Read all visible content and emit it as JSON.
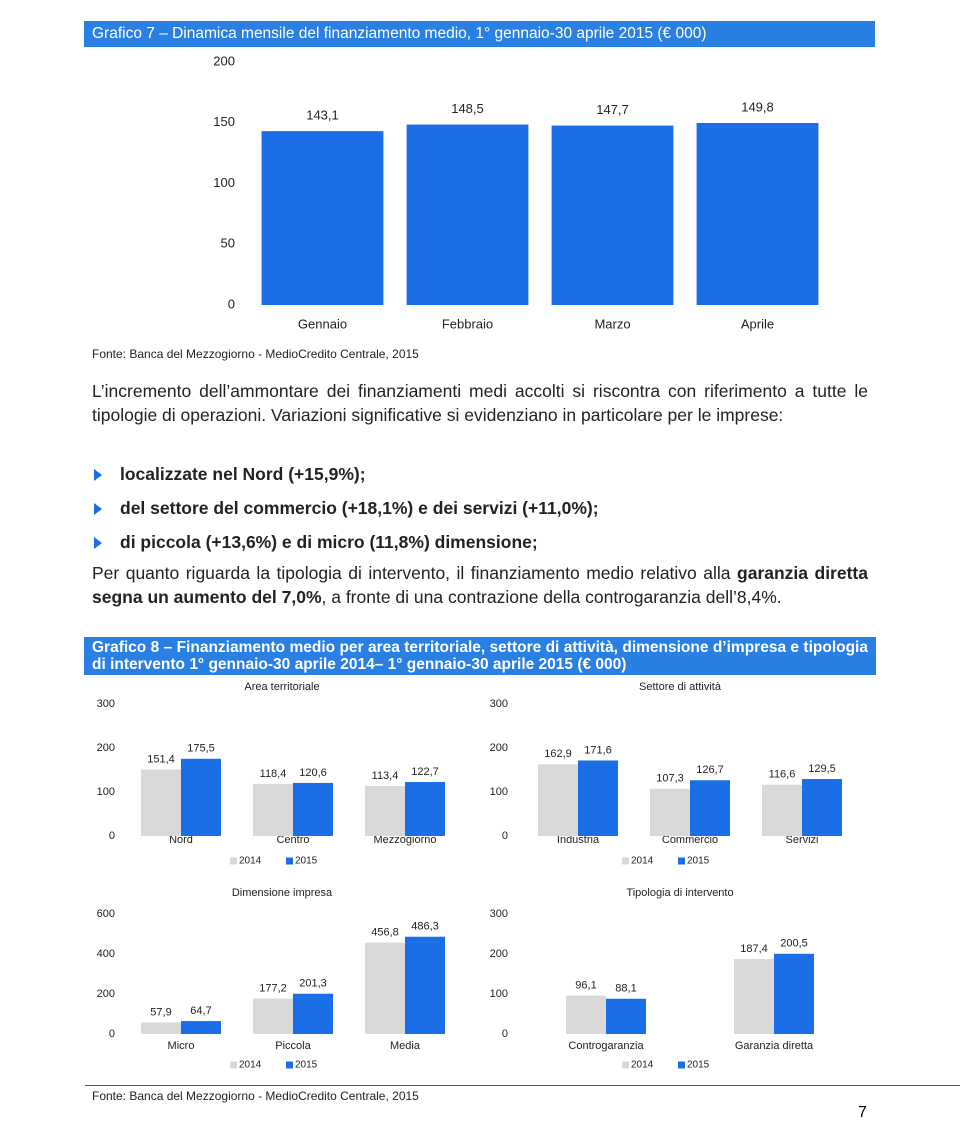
{
  "chart_data": [
    {
      "type": "bar",
      "title": "Grafico 7 – Dinamica mensile del finanziamento medio, 1° gennaio-30 aprile 2015 (€ 000)",
      "categories": [
        "Gennaio",
        "Febbraio",
        "Marzo",
        "Aprile"
      ],
      "values": [
        143.1,
        148.5,
        147.7,
        149.8
      ],
      "value_labels": [
        "143,1",
        "148,5",
        "147,7",
        "149,8"
      ],
      "color": "#1a6fe6",
      "ylim": [
        0,
        200
      ],
      "yticks": [
        0,
        50,
        100,
        150,
        200
      ],
      "grid": false
    },
    {
      "type": "grouped-bar",
      "title": "Area territoriale",
      "categories": [
        "Nord",
        "Centro",
        "Mezzogiorno"
      ],
      "series": [
        {
          "name": "2014",
          "color": "#d9d9d9",
          "values": [
            151.4,
            118.4,
            113.4
          ],
          "value_labels": [
            "151,4",
            "118,4",
            "113,4"
          ]
        },
        {
          "name": "2015",
          "color": "#1a6fe6",
          "values": [
            175.5,
            120.6,
            122.7
          ],
          "value_labels": [
            "175,5",
            "120,6",
            "122,7"
          ]
        }
      ],
      "ylim": [
        0,
        300
      ],
      "yticks": [
        0,
        100,
        200,
        300
      ],
      "grid": false
    },
    {
      "type": "grouped-bar",
      "title": "Settore di attività",
      "categories": [
        "Industria",
        "Commercio",
        "Servizi"
      ],
      "series": [
        {
          "name": "2014",
          "color": "#d9d9d9",
          "values": [
            162.9,
            107.3,
            116.6
          ],
          "value_labels": [
            "162,9",
            "107,3",
            "116,6"
          ]
        },
        {
          "name": "2015",
          "color": "#1a6fe6",
          "values": [
            171.6,
            126.7,
            129.5
          ],
          "value_labels": [
            "171,6",
            "126,7",
            "129,5"
          ]
        }
      ],
      "ylim": [
        0,
        300
      ],
      "yticks": [
        0,
        100,
        200,
        300
      ],
      "grid": false
    },
    {
      "type": "grouped-bar",
      "title": "Dimensione impresa",
      "categories": [
        "Micro",
        "Piccola",
        "Media"
      ],
      "series": [
        {
          "name": "2014",
          "color": "#d9d9d9",
          "values": [
            57.9,
            177.2,
            456.8
          ],
          "value_labels": [
            "57,9",
            "177,2",
            "456,8"
          ]
        },
        {
          "name": "2015",
          "color": "#1a6fe6",
          "values": [
            64.7,
            201.3,
            486.3
          ],
          "value_labels": [
            "64,7",
            "201,3",
            "486,3"
          ]
        }
      ],
      "ylim": [
        0,
        600
      ],
      "yticks": [
        0,
        200,
        400,
        600
      ],
      "grid": false
    },
    {
      "type": "grouped-bar",
      "title": "Tipologia di intervento",
      "categories": [
        "Controgaranzia",
        "Garanzia diretta"
      ],
      "series": [
        {
          "name": "2014",
          "color": "#d9d9d9",
          "values": [
            96.1,
            187.4
          ],
          "value_labels": [
            "96,1",
            "187,4"
          ]
        },
        {
          "name": "2015",
          "color": "#1a6fe6",
          "values": [
            88.1,
            200.5
          ],
          "value_labels": [
            "88,1",
            "200,5"
          ]
        }
      ],
      "ylim": [
        0,
        300
      ],
      "yticks": [
        0,
        100,
        200,
        300
      ],
      "grid": false
    }
  ],
  "document": {
    "source_7": "Fonte: Banca del Mezzogiorno - MedioCredito Centrale, 2015",
    "intro": "L’incremento dell’ammontare dei finanziamenti medi accolti si riscontra con riferimento a tutte le tipologie di operazioni. Variazioni significative si evidenziano in particolare per le imprese:",
    "bullets": [
      "localizzate nel Nord (+15,9%);",
      "del settore del commercio (+18,1%) e dei servizi (+11,0%);",
      "di piccola (+13,6%) e di micro (11,8%) dimensione;"
    ],
    "paragraph": [
      "Per quanto riguarda la tipologia di intervento, il finanziamento medio relativo alla ",
      "garanzia diretta segna un aumento del 7,0%",
      ", a fronte di una contrazione della controgaranzia dell’8,4%."
    ],
    "caption_8": "Grafico 8 – Finanziamento medio per area territoriale, settore di attività, dimensione d’impresa e tipologia di intervento 1° gennaio-30 aprile 2014– 1° gennaio-30 aprile 2015 (€ 000)",
    "source_8": "Fonte: Banca del Mezzogiorno - MedioCredito Centrale, 2015",
    "page_number": "7"
  }
}
